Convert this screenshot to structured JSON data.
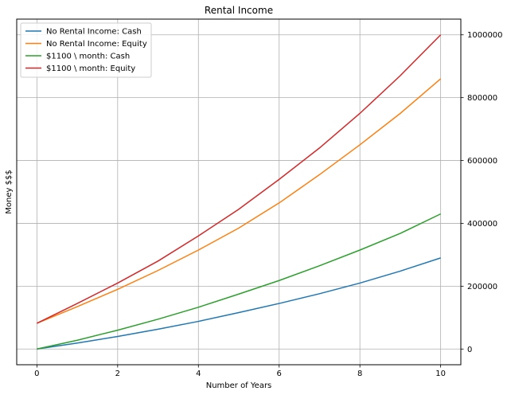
{
  "chart_data": {
    "type": "line",
    "title": "Rental Income",
    "xlabel": "Number of Years",
    "ylabel": "Money $$$",
    "xlim": [
      -0.5,
      10.5
    ],
    "ylim": [
      -50000,
      1050000
    ],
    "x_ticks": [
      0,
      2,
      4,
      6,
      8,
      10
    ],
    "y_ticks": [
      0,
      200000,
      400000,
      600000,
      800000,
      1000000
    ],
    "y_axis_side": "right",
    "grid": true,
    "legend_location": "upper-left",
    "x": [
      0,
      1,
      2,
      3,
      4,
      5,
      6,
      7,
      8,
      9,
      10
    ],
    "series": [
      {
        "name": "No Rental Income: Cash",
        "color": "#1f77b4",
        "values": [
          0,
          19000,
          40000,
          63000,
          88000,
          116000,
          145000,
          176000,
          210000,
          248000,
          290000
        ]
      },
      {
        "name": "No Rental Income: Equity",
        "color": "#ff7f0e",
        "values": [
          82000,
          135000,
          190000,
          250000,
          315000,
          385000,
          465000,
          555000,
          650000,
          750000,
          860000
        ]
      },
      {
        "name": "$1100 \\ month: Cash",
        "color": "#2ca02c",
        "values": [
          0,
          28000,
          60000,
          95000,
          133000,
          175000,
          218000,
          265000,
          315000,
          368000,
          430000
        ]
      },
      {
        "name": "$1100 \\ month: Equity",
        "color": "#d62728",
        "values": [
          82000,
          145000,
          210000,
          280000,
          360000,
          445000,
          540000,
          640000,
          750000,
          870000,
          1000000
        ]
      }
    ]
  }
}
